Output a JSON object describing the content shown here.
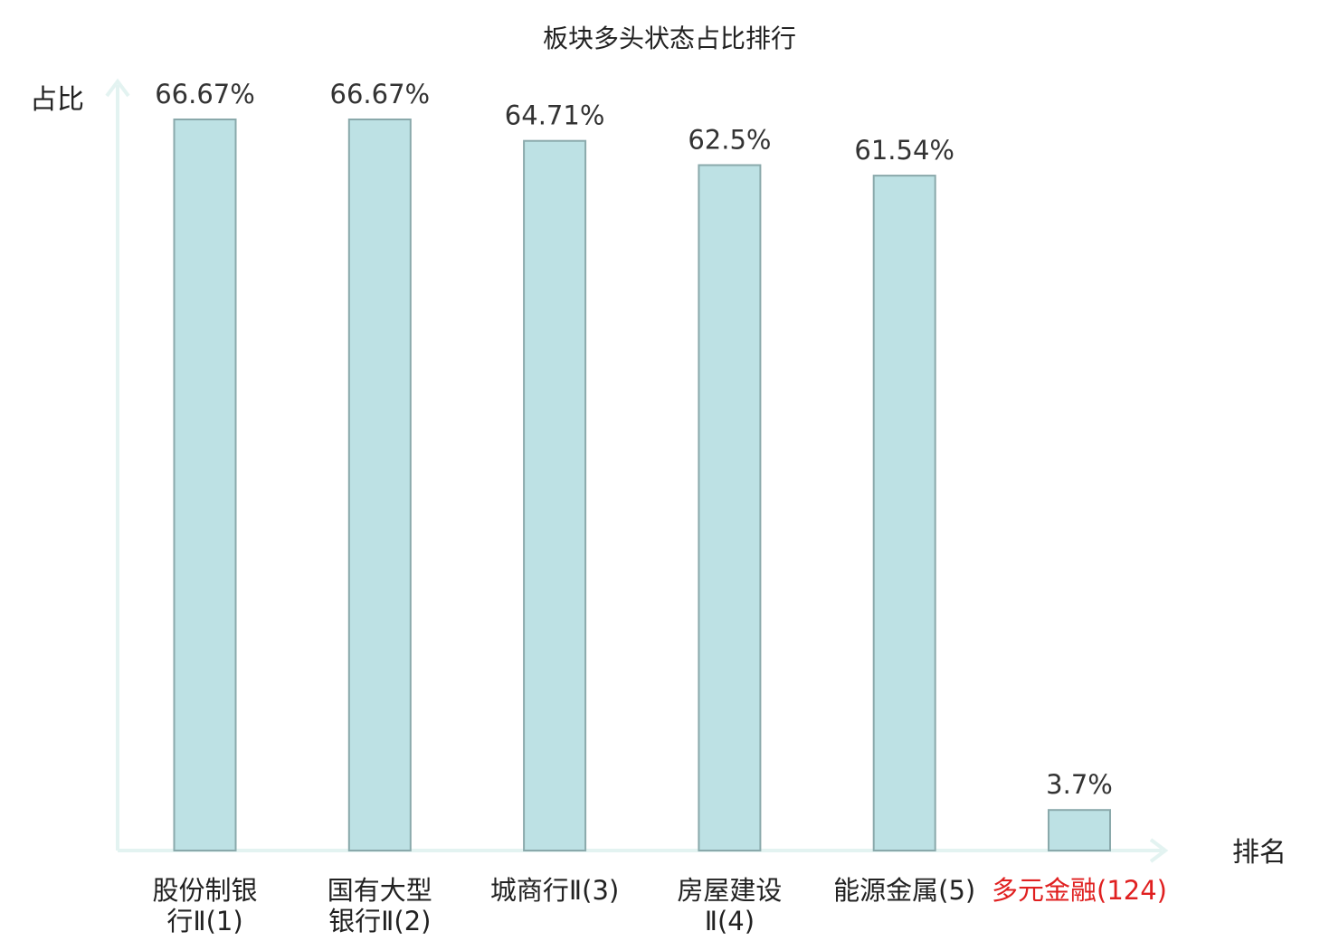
{
  "chart_data": {
    "type": "bar",
    "title": "板块多头状态占比排行",
    "ylabel": "占比",
    "xlabel": "排名",
    "ylim": [
      0,
      70
    ],
    "grid": false,
    "legend": "none",
    "categories": [
      {
        "lines": [
          "股份制银",
          "行Ⅱ(1)"
        ],
        "highlight": false
      },
      {
        "lines": [
          "国有大型",
          "银行Ⅱ(2)"
        ],
        "highlight": false
      },
      {
        "lines": [
          "城商行Ⅱ(3)"
        ],
        "highlight": false
      },
      {
        "lines": [
          "房屋建设",
          "Ⅱ(4)"
        ],
        "highlight": false
      },
      {
        "lines": [
          "能源金属(5)"
        ],
        "highlight": false
      },
      {
        "lines": [
          "多元金融(124)"
        ],
        "highlight": true
      }
    ],
    "values": [
      66.67,
      66.67,
      64.71,
      62.5,
      61.54,
      3.7
    ],
    "value_labels": [
      "66.67%",
      "66.67%",
      "64.71%",
      "62.5%",
      "61.54%",
      "3.7%"
    ],
    "colors": {
      "bar_fill": "#bde1e4",
      "bar_stroke": "#8aa9ab",
      "axis": "#e3f3f1",
      "highlight_text": "#e02020",
      "text": "#222222"
    }
  }
}
